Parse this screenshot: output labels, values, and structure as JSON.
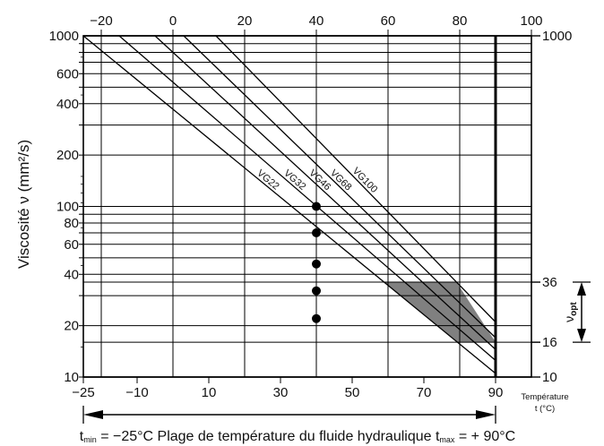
{
  "chart_data": {
    "type": "line",
    "ylabel": "Viscosité ν (mm²/s)",
    "x_axis_label_line1": "Température",
    "x_axis_label_line2": "t (°C)",
    "yscale": "log",
    "xlim": [
      -25,
      100
    ],
    "ylim": [
      10,
      1000
    ],
    "x_bottom_ticks": [
      -25,
      -10,
      10,
      30,
      50,
      70,
      90
    ],
    "x_top_ticks": [
      -20,
      0,
      20,
      40,
      60,
      80,
      100
    ],
    "y_left_ticks": [
      10,
      20,
      40,
      60,
      80,
      100,
      200,
      400,
      600,
      1000
    ],
    "y_right_ticks": [
      10,
      16,
      36,
      1000
    ],
    "series": [
      {
        "name": "VG22",
        "x": [
          -25,
          90
        ],
        "y": [
          1000,
          10.5
        ]
      },
      {
        "name": "VG32",
        "x": [
          -15,
          90
        ],
        "y": [
          1000,
          12.5
        ]
      },
      {
        "name": "VG46",
        "x": [
          -5,
          90
        ],
        "y": [
          1000,
          14.5
        ]
      },
      {
        "name": "VG68",
        "x": [
          3,
          90
        ],
        "y": [
          1000,
          17
        ]
      },
      {
        "name": "VG100",
        "x": [
          12,
          90
        ],
        "y": [
          1000,
          21
        ]
      }
    ],
    "points": [
      {
        "x": 40,
        "y": 100
      },
      {
        "x": 40,
        "y": 70
      },
      {
        "x": 40,
        "y": 46
      },
      {
        "x": 40,
        "y": 32
      },
      {
        "x": 40,
        "y": 22
      }
    ],
    "optimal_band": {
      "y_min": 16,
      "y_max": 36
    },
    "tmax_line_x": 90,
    "optimal_label": "νopt",
    "operating_range_text": {
      "tmin_label": "t",
      "tmin_sub": "min",
      "tmin_value": "= −25°C",
      "middle": "Plage de température du fluide hydraulique",
      "tmax_label": "t",
      "tmax_sub": "max",
      "tmax_value": "= + 90°C"
    }
  }
}
